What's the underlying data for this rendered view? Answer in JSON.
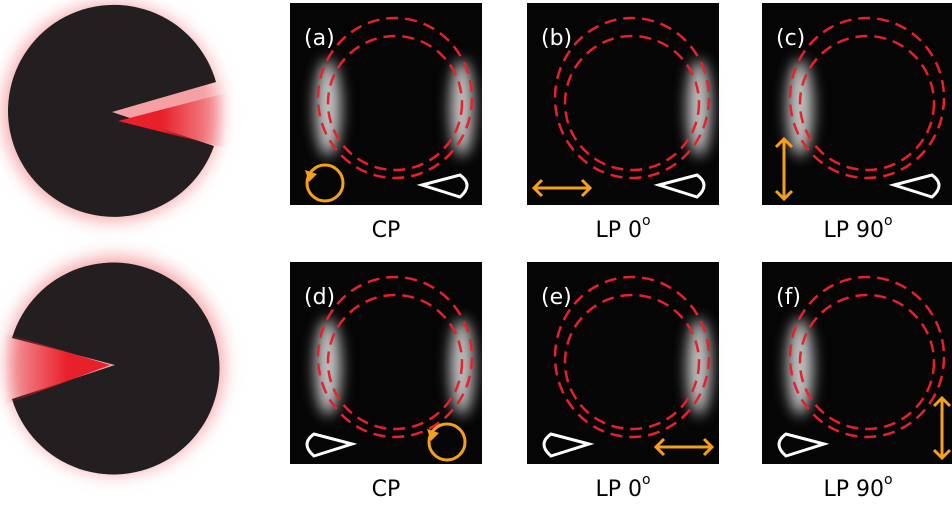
{
  "panels": [
    {
      "label": "(a)",
      "caption": {
        "text": "CP",
        "sup": null
      }
    },
    {
      "label": "(b)",
      "caption": {
        "text": "LP 0",
        "sup": "o"
      }
    },
    {
      "label": "(c)",
      "caption": {
        "text": "LP 90",
        "sup": "o"
      }
    },
    {
      "label": "(d)",
      "caption": {
        "text": "CP",
        "sup": null
      }
    },
    {
      "label": "(e)",
      "caption": {
        "text": "LP 0",
        "sup": "o"
      }
    },
    {
      "label": "(f)",
      "caption": {
        "text": "LP 90",
        "sup": "o"
      }
    }
  ]
}
